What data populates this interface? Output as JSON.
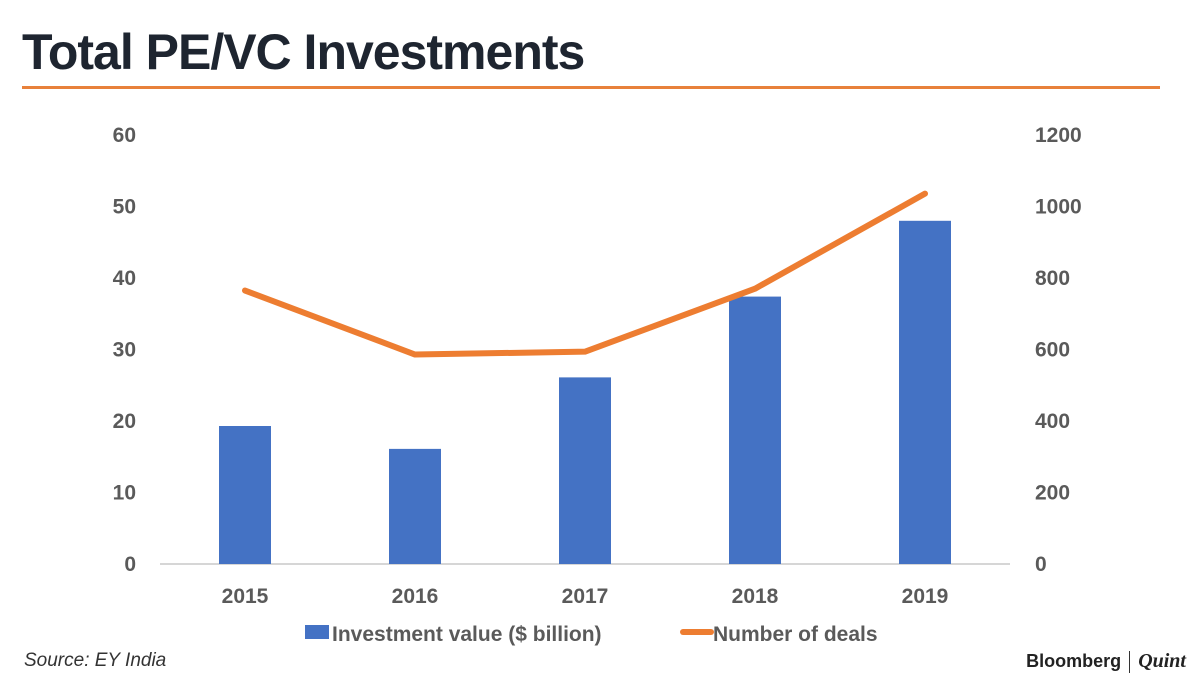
{
  "title": "Total PE/VC Investments",
  "source": "Source: EY India",
  "brand": {
    "name": "Bloomberg",
    "suffix": "Quint"
  },
  "colors": {
    "bar": "#4472c4",
    "line": "#ed7d31",
    "accent_rule": "#e8813b",
    "text": "#5a5a5a"
  },
  "chart_data": {
    "type": "bar",
    "categories": [
      "2015",
      "2016",
      "2017",
      "2018",
      "2019"
    ],
    "series": [
      {
        "name": "Investment value ($ billion)",
        "type": "bar",
        "axis": "left",
        "values": [
          19.3,
          16.1,
          26.1,
          37.4,
          48.0
        ]
      },
      {
        "name": "Number of deals",
        "type": "line",
        "axis": "right",
        "values": [
          765,
          586,
          594,
          770,
          1036
        ]
      }
    ],
    "y_left": {
      "min": 0,
      "max": 60,
      "ticks": [
        0,
        10,
        20,
        30,
        40,
        50,
        60
      ]
    },
    "y_right": {
      "min": 0,
      "max": 1200,
      "ticks": [
        0,
        200,
        400,
        600,
        800,
        1000,
        1200
      ]
    },
    "grid": false,
    "legend": "bottom"
  }
}
